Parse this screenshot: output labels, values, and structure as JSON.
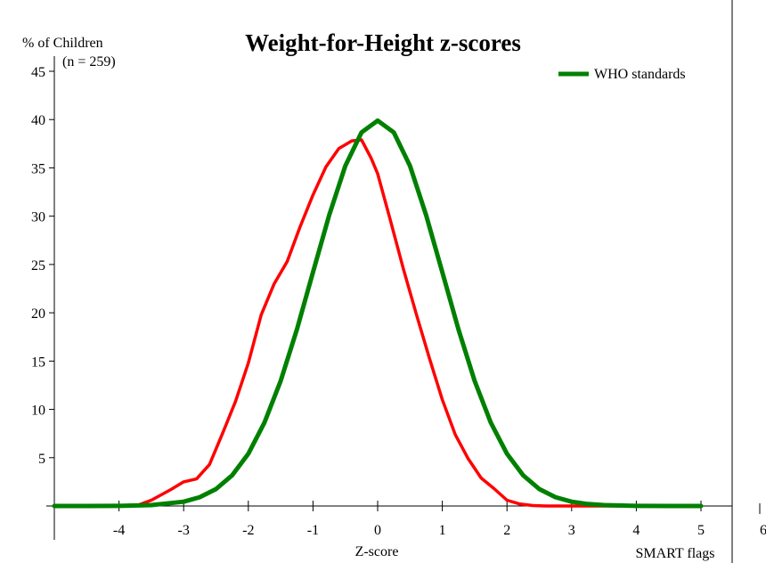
{
  "chart_data": {
    "type": "line",
    "title": "Weight-for-Height z-scores",
    "ylabel": "% of Children",
    "sample_note": "(n = 259)",
    "xlabel": "Z-score",
    "footer_label": "SMART flags",
    "edge_tick_label": "6",
    "xlim": [
      -5,
      5
    ],
    "ylim": [
      0,
      45
    ],
    "x_ticks": [
      -4,
      -3,
      -2,
      -1,
      0,
      1,
      2,
      3,
      4,
      5
    ],
    "x_tick_labels": [
      "-4",
      "-3",
      "-2",
      "-1",
      "0",
      "1",
      "2",
      "3",
      "4",
      "5"
    ],
    "y_ticks": [
      5,
      10,
      15,
      20,
      25,
      30,
      35,
      40,
      45
    ],
    "y_tick_labels": [
      "5",
      "10",
      "15",
      "20",
      "25",
      "30",
      "35",
      "40",
      "45"
    ],
    "grid": false,
    "legend_position": "top-right",
    "colors": {
      "observed": "#ff0000",
      "who": "#008000",
      "axis": "#000000"
    },
    "series": [
      {
        "legend": false,
        "color": "#ff0000",
        "x": [
          -5,
          -4,
          -3.7,
          -3.5,
          -3.2,
          -3.0,
          -2.8,
          -2.6,
          -2.4,
          -2.2,
          -2.0,
          -1.8,
          -1.6,
          -1.4,
          -1.2,
          -1.0,
          -0.8,
          -0.6,
          -0.4,
          -0.25,
          -0.1,
          0.0,
          0.2,
          0.4,
          0.6,
          0.8,
          1.0,
          1.2,
          1.4,
          1.6,
          1.8,
          2.0,
          2.2,
          2.4,
          2.6,
          2.8,
          3.0,
          3.2,
          4,
          5
        ],
        "values": [
          0,
          0,
          0.1,
          0.6,
          1.7,
          2.5,
          2.8,
          4.3,
          7.5,
          10.8,
          14.8,
          19.8,
          23.0,
          25.3,
          28.9,
          32.2,
          35.1,
          37.0,
          37.8,
          37.9,
          36.0,
          34.4,
          29.5,
          24.5,
          19.8,
          15.3,
          11.0,
          7.4,
          4.9,
          2.9,
          1.8,
          0.6,
          0.2,
          0.05,
          0,
          0,
          0,
          0,
          0,
          0
        ]
      },
      {
        "name": "WHO standards",
        "color": "#008000",
        "x": [
          -5,
          -4.5,
          -4,
          -3.5,
          -3.0,
          -2.75,
          -2.5,
          -2.25,
          -2.0,
          -1.75,
          -1.5,
          -1.25,
          -1.0,
          -0.75,
          -0.5,
          -0.25,
          0.0,
          0.25,
          0.5,
          0.75,
          1.0,
          1.25,
          1.5,
          1.75,
          2.0,
          2.25,
          2.5,
          2.75,
          3.0,
          3.25,
          3.5,
          4,
          4.5,
          5
        ],
        "values": [
          0,
          0,
          0.01,
          0.09,
          0.44,
          0.91,
          1.75,
          3.17,
          5.4,
          8.63,
          12.95,
          18.26,
          24.2,
          30.11,
          35.21,
          38.67,
          39.89,
          38.67,
          35.21,
          30.11,
          24.2,
          18.26,
          12.95,
          8.63,
          5.4,
          3.17,
          1.75,
          0.91,
          0.44,
          0.2,
          0.09,
          0.01,
          0,
          0
        ]
      }
    ]
  }
}
